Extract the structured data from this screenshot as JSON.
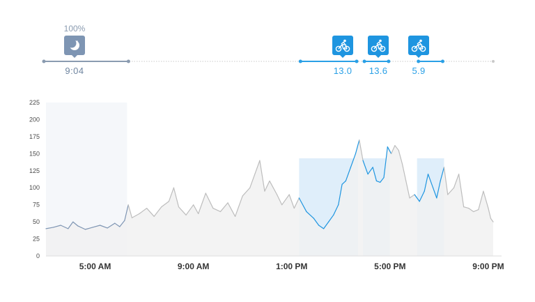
{
  "colors": {
    "sleep": "#7e95b3",
    "ride": "#1e95e0",
    "line": "#bdbdbd",
    "area": "#f1f1f1",
    "ride_band": "#d4e8f8"
  },
  "icons": {
    "sleep": "moon-icon",
    "ride": "bicycle-icon"
  },
  "events": {
    "sleep": {
      "percent": "100%",
      "duration": "9:04",
      "start": 3.0,
      "end": 6.3
    },
    "rides": [
      {
        "value": "13.0",
        "start": 13.3,
        "end": 15.7
      },
      {
        "value": "13.6",
        "start": 15.9,
        "end": 17.0
      },
      {
        "value": "5.9",
        "start": 18.1,
        "end": 19.2
      }
    ]
  },
  "chart_data": {
    "type": "area",
    "xlabel": "",
    "ylabel": "",
    "xlim": [
      3.0,
      21.2
    ],
    "ylim": [
      0,
      225
    ],
    "y_ticks": [
      "0",
      "25",
      "50",
      "75",
      "100",
      "125",
      "150",
      "175",
      "200",
      "225"
    ],
    "x_ticks": [
      {
        "x": 5,
        "label": "5:00 AM"
      },
      {
        "x": 9,
        "label": "9:00 AM"
      },
      {
        "x": 13,
        "label": "1:00 PM"
      },
      {
        "x": 17,
        "label": "5:00 PM"
      },
      {
        "x": 21,
        "label": "9:00 PM"
      }
    ],
    "grid": false,
    "series": [
      {
        "points": [
          [
            3.0,
            40
          ],
          [
            3.3,
            42
          ],
          [
            3.6,
            45
          ],
          [
            3.9,
            40
          ],
          [
            4.1,
            50
          ],
          [
            4.3,
            44
          ],
          [
            4.6,
            39
          ],
          [
            4.9,
            42
          ],
          [
            5.2,
            45
          ],
          [
            5.5,
            41
          ],
          [
            5.8,
            48
          ],
          [
            6.0,
            43
          ],
          [
            6.2,
            52
          ],
          [
            6.35,
            75
          ],
          [
            6.5,
            56
          ],
          [
            6.8,
            62
          ],
          [
            7.1,
            70
          ],
          [
            7.4,
            58
          ],
          [
            7.7,
            72
          ],
          [
            8.0,
            80
          ],
          [
            8.2,
            100
          ],
          [
            8.4,
            72
          ],
          [
            8.7,
            60
          ],
          [
            9.0,
            75
          ],
          [
            9.2,
            62
          ],
          [
            9.5,
            92
          ],
          [
            9.8,
            70
          ],
          [
            10.1,
            65
          ],
          [
            10.4,
            78
          ],
          [
            10.7,
            58
          ],
          [
            11.0,
            88
          ],
          [
            11.3,
            100
          ],
          [
            11.5,
            120
          ],
          [
            11.7,
            140
          ],
          [
            11.9,
            95
          ],
          [
            12.1,
            110
          ],
          [
            12.4,
            90
          ],
          [
            12.6,
            75
          ],
          [
            12.9,
            90
          ],
          [
            13.1,
            70
          ],
          [
            13.3,
            85
          ],
          [
            13.6,
            65
          ],
          [
            13.9,
            55
          ],
          [
            14.1,
            45
          ],
          [
            14.3,
            40
          ],
          [
            14.5,
            50
          ],
          [
            14.7,
            60
          ],
          [
            14.9,
            75
          ],
          [
            15.05,
            105
          ],
          [
            15.2,
            110
          ],
          [
            15.4,
            130
          ],
          [
            15.6,
            150
          ],
          [
            15.75,
            170
          ],
          [
            15.9,
            140
          ],
          [
            16.1,
            120
          ],
          [
            16.3,
            130
          ],
          [
            16.45,
            110
          ],
          [
            16.6,
            108
          ],
          [
            16.75,
            115
          ],
          [
            16.9,
            160
          ],
          [
            17.05,
            150
          ],
          [
            17.2,
            162
          ],
          [
            17.35,
            155
          ],
          [
            17.5,
            135
          ],
          [
            17.65,
            110
          ],
          [
            17.8,
            85
          ],
          [
            18.0,
            90
          ],
          [
            18.2,
            80
          ],
          [
            18.4,
            95
          ],
          [
            18.55,
            120
          ],
          [
            18.75,
            100
          ],
          [
            18.9,
            85
          ],
          [
            19.05,
            110
          ],
          [
            19.2,
            130
          ],
          [
            19.35,
            90
          ],
          [
            19.6,
            100
          ],
          [
            19.8,
            120
          ],
          [
            20.0,
            72
          ],
          [
            20.2,
            70
          ],
          [
            20.4,
            65
          ],
          [
            20.6,
            68
          ],
          [
            20.8,
            95
          ],
          [
            21.0,
            70
          ],
          [
            21.1,
            55
          ],
          [
            21.2,
            50
          ]
        ]
      }
    ]
  }
}
